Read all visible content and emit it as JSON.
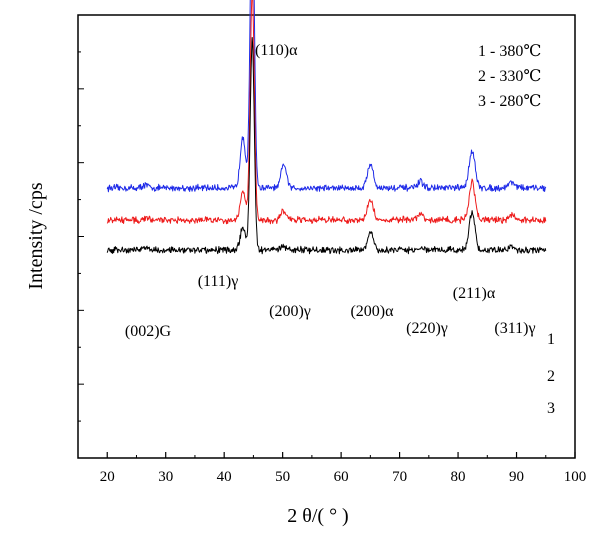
{
  "chart_data": {
    "type": "line",
    "title": "",
    "xlabel": "2 θ/( ° )",
    "ylabel": "Intensity /cps",
    "xlim": [
      15,
      100
    ],
    "xticks": [
      20,
      30,
      40,
      50,
      60,
      70,
      80,
      90,
      100
    ],
    "y_tick_labels": false,
    "grid": false,
    "legend_position": "top-right",
    "legend": [
      {
        "number": "1",
        "label": "1 - 380℃",
        "color": "#1f2be8"
      },
      {
        "number": "2",
        "label": "2 - 330℃",
        "color": "#ee1c1c"
      },
      {
        "number": "3",
        "label": "3 - 280℃",
        "color": "#000000"
      }
    ],
    "x_range_data": [
      20,
      95
    ],
    "series": [
      {
        "name": "1",
        "color": "#1f2be8",
        "baseline": 270,
        "peaks": [
          [
            26.5,
            3,
            0.5
          ],
          [
            43.2,
            52,
            0.45
          ],
          [
            44.8,
            300,
            0.35
          ],
          [
            50.2,
            24,
            0.45
          ],
          [
            65.0,
            24,
            0.5
          ],
          [
            73.6,
            6,
            0.5
          ],
          [
            82.4,
            38,
            0.5
          ],
          [
            89.2,
            6,
            0.6
          ]
        ]
      },
      {
        "name": "2",
        "color": "#ee1c1c",
        "baseline": 238,
        "peaks": [
          [
            26.5,
            2,
            0.5
          ],
          [
            43.2,
            28,
            0.45
          ],
          [
            44.8,
            230,
            0.35
          ],
          [
            50.2,
            9,
            0.45
          ],
          [
            65.0,
            20,
            0.5
          ],
          [
            73.6,
            6,
            0.5
          ],
          [
            82.4,
            38,
            0.5
          ],
          [
            89.2,
            4,
            0.6
          ]
        ]
      },
      {
        "name": "3",
        "color": "#000000",
        "baseline": 208,
        "peaks": [
          [
            26.5,
            2,
            0.5
          ],
          [
            43.2,
            22,
            0.45
          ],
          [
            44.8,
            210,
            0.35
          ],
          [
            50.2,
            4,
            0.45
          ],
          [
            65.0,
            17,
            0.5
          ],
          [
            73.6,
            2,
            0.5
          ],
          [
            82.4,
            38,
            0.5
          ],
          [
            89.2,
            3,
            0.6
          ]
        ]
      }
    ],
    "annotations": [
      {
        "text": "(110)α",
        "x": 44.8
      },
      {
        "text": "(111)γ",
        "x": 43.0
      },
      {
        "text": "(200)γ",
        "x": 50.2
      },
      {
        "text": "(200)α",
        "x": 65.0
      },
      {
        "text": "(220)γ",
        "x": 73.6
      },
      {
        "text": "(211)α",
        "x": 82.4
      },
      {
        "text": "(311)γ",
        "x": 89.2
      },
      {
        "text": "(002)G",
        "x": 26.5
      }
    ]
  }
}
